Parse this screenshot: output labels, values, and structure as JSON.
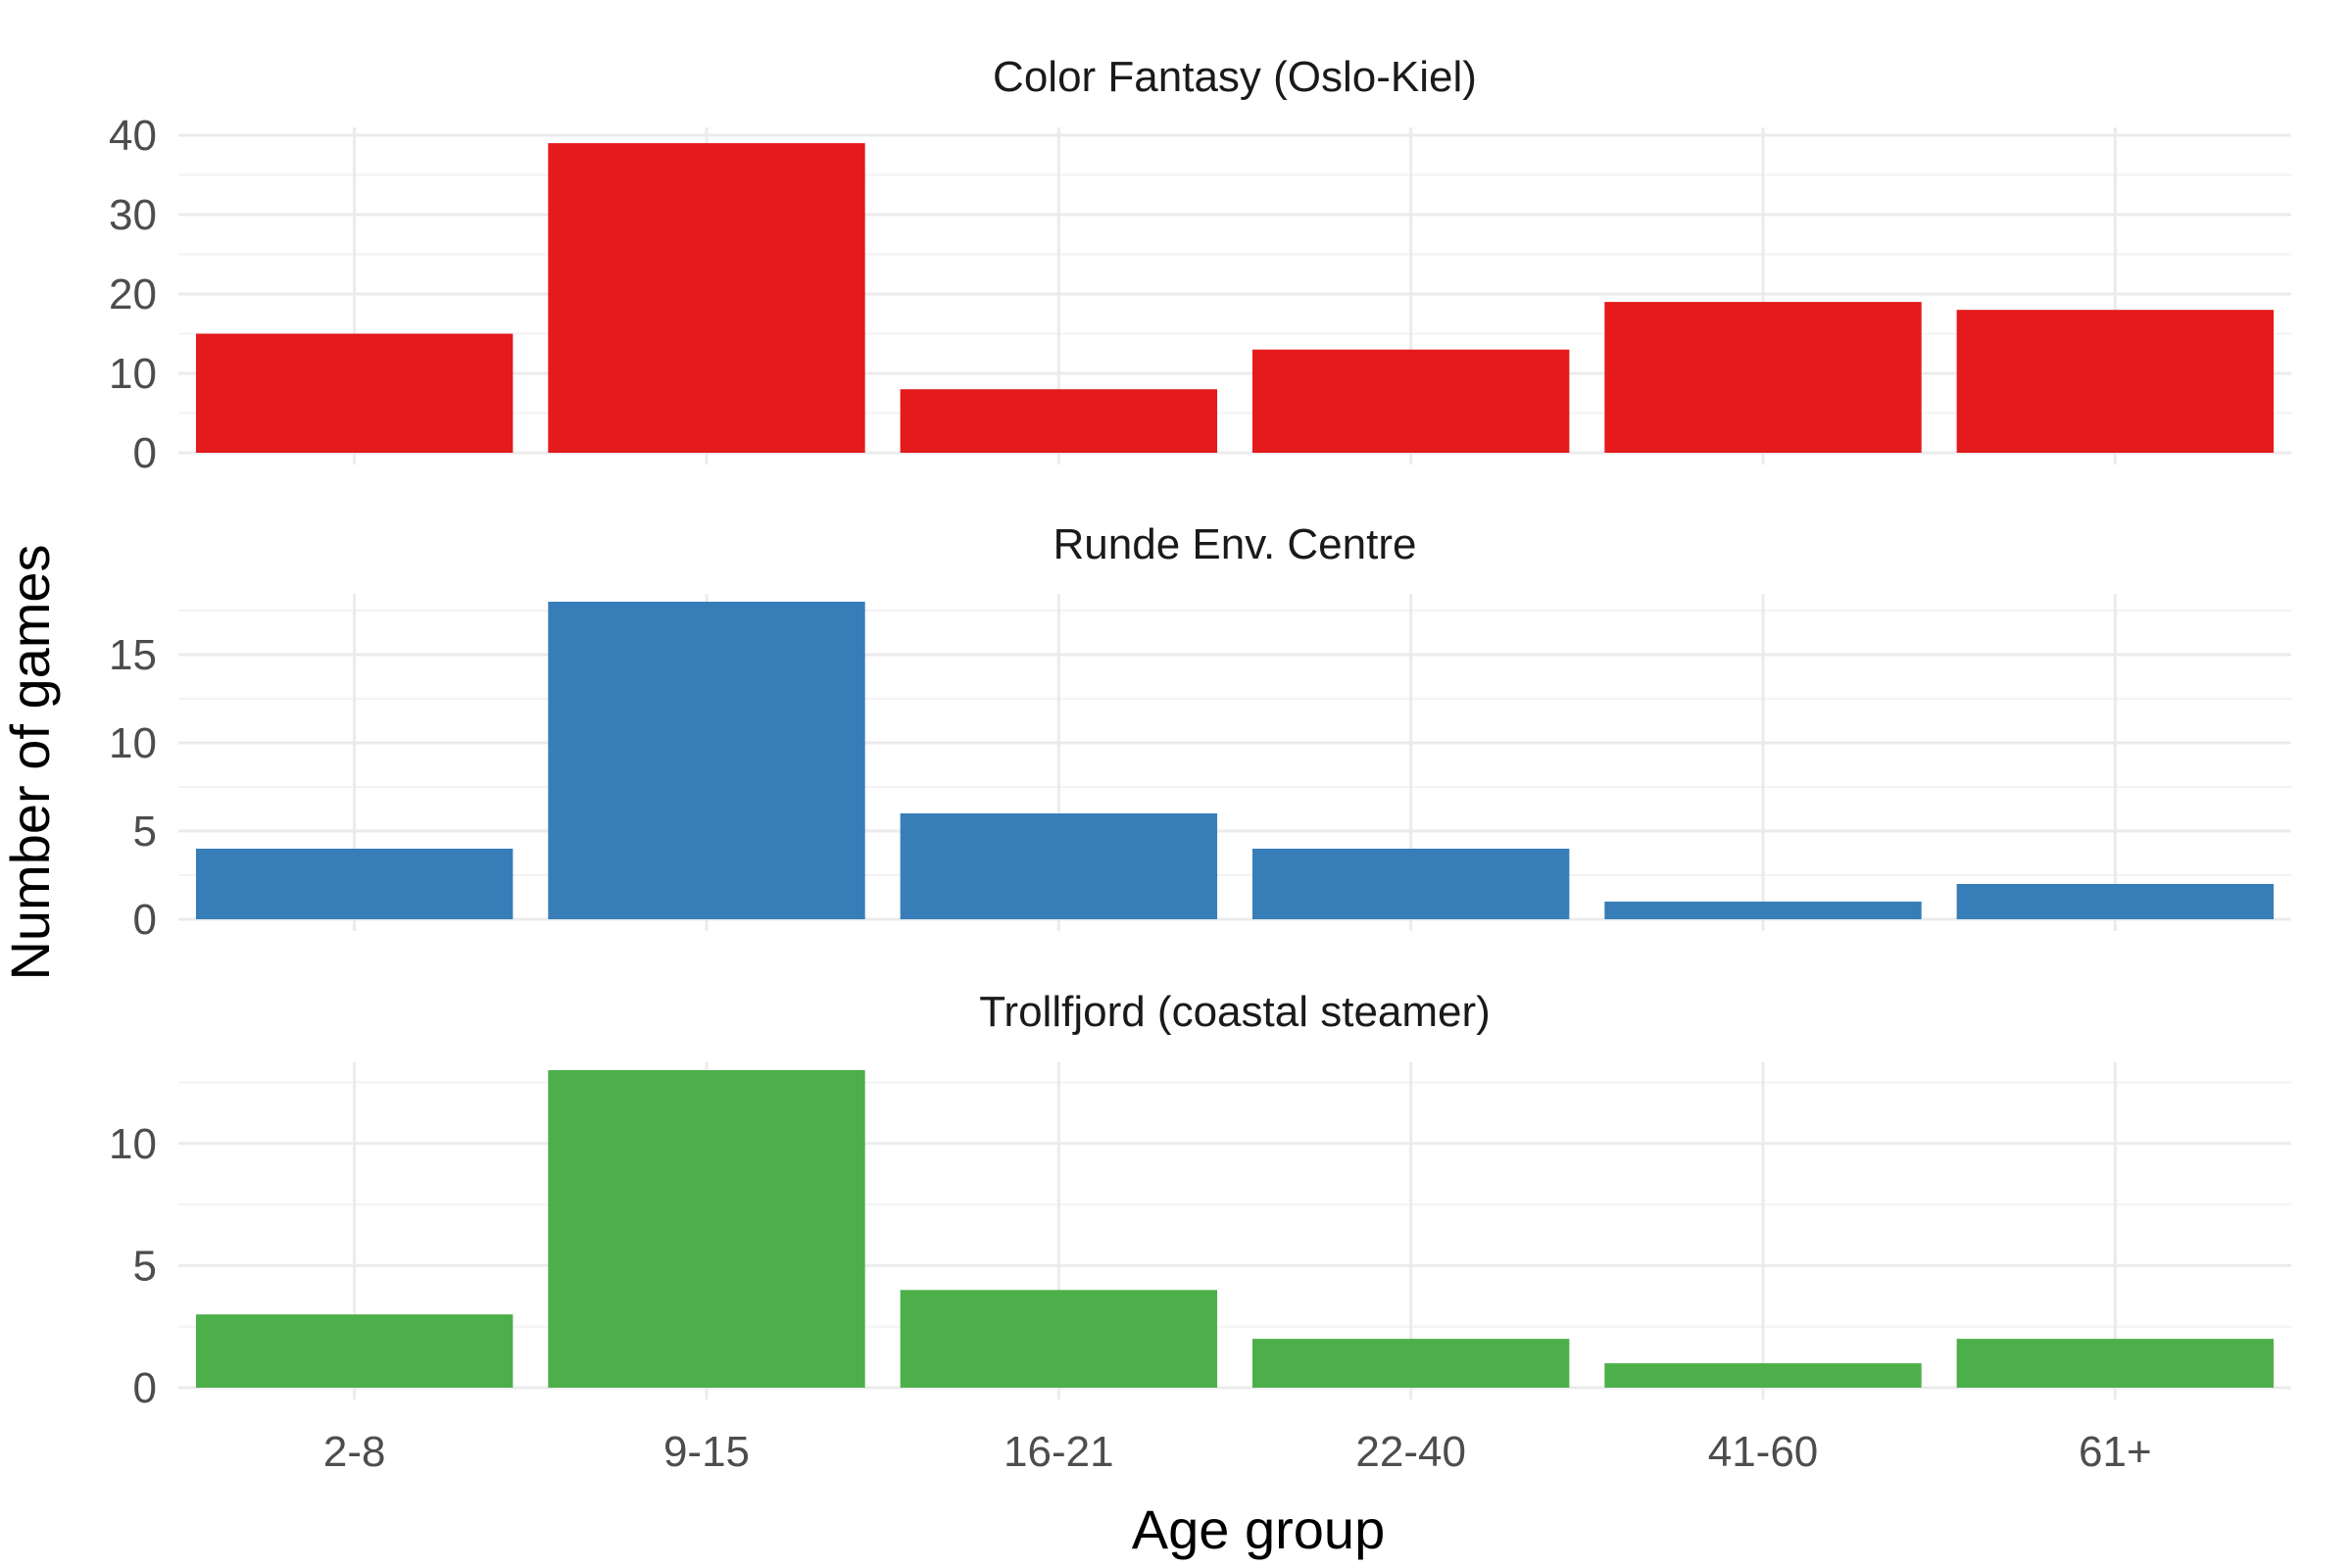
{
  "chart_data": {
    "type": "bar",
    "categories": [
      "2-8",
      "9-15",
      "16-21",
      "22-40",
      "41-60",
      "61+"
    ],
    "xlabel": "Age group",
    "ylabel": "Number of games",
    "grid": true,
    "legend": "none",
    "facets": [
      {
        "title": "Color Fantasy (Oslo-Kiel)",
        "color": "#E41A1C",
        "values": [
          15,
          39,
          8,
          13,
          19,
          18
        ],
        "ylim": [
          0,
          40
        ],
        "yticks": [
          0,
          10,
          20,
          30,
          40
        ]
      },
      {
        "title": "Runde Env. Centre",
        "color": "#377EB8",
        "values": [
          4,
          18,
          6,
          4,
          1,
          2
        ],
        "ylim": [
          0,
          18
        ],
        "yticks": [
          0,
          5,
          10,
          15
        ]
      },
      {
        "title": "Trollfjord (coastal steamer)",
        "color": "#4DAF4A",
        "values": [
          3,
          13,
          4,
          2,
          1,
          2
        ],
        "ylim": [
          0,
          13
        ],
        "yticks": [
          0,
          5,
          10
        ]
      }
    ]
  }
}
